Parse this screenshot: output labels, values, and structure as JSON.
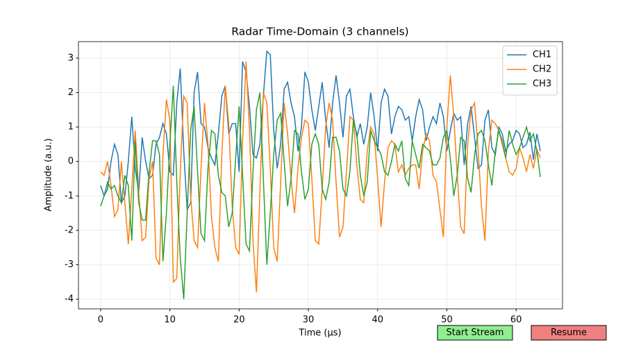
{
  "chart_data": {
    "type": "line",
    "title": "Radar Time-Domain (3 channels)",
    "xlabel": "Time (µs)",
    "ylabel": "Amplitude (a.u.)",
    "x": [
      0,
      0.5,
      1,
      1.5,
      2,
      2.5,
      3,
      3.5,
      4,
      4.5,
      5,
      5.5,
      6,
      6.5,
      7,
      7.5,
      8,
      8.5,
      9,
      9.5,
      10,
      10.5,
      11,
      11.5,
      12,
      12.5,
      13,
      13.5,
      14,
      14.5,
      15,
      15.5,
      16,
      16.5,
      17,
      17.5,
      18,
      18.5,
      19,
      19.5,
      20,
      20.5,
      21,
      21.5,
      22,
      22.5,
      23,
      23.5,
      24,
      24.5,
      25,
      25.5,
      26,
      26.5,
      27,
      27.5,
      28,
      28.5,
      29,
      29.5,
      30,
      30.5,
      31,
      31.5,
      32,
      32.5,
      33,
      33.5,
      34,
      34.5,
      35,
      35.5,
      36,
      36.5,
      37,
      37.5,
      38,
      38.5,
      39,
      39.5,
      40,
      40.5,
      41,
      41.5,
      42,
      42.5,
      43,
      43.5,
      44,
      44.5,
      45,
      45.5,
      46,
      46.5,
      47,
      47.5,
      48,
      48.5,
      49,
      49.5,
      50,
      50.5,
      51,
      51.5,
      52,
      52.5,
      53,
      53.5,
      54,
      54.5,
      55,
      55.5,
      56,
      56.5,
      57,
      57.5,
      58,
      58.5,
      59,
      59.5,
      60,
      60.5,
      61,
      61.5,
      62,
      62.5,
      63,
      63.5
    ],
    "series": [
      {
        "name": "CH1",
        "color": "#1f77b4",
        "values": [
          -0.7,
          -1.0,
          -0.8,
          0.0,
          0.5,
          0.2,
          -1.2,
          -1.0,
          0.0,
          1.3,
          -0.2,
          -0.9,
          0.7,
          0.0,
          -0.5,
          -0.4,
          0.5,
          0.7,
          1.1,
          0.8,
          -0.3,
          -0.4,
          1.7,
          2.7,
          0.3,
          -1.4,
          -1.2,
          2.0,
          2.6,
          1.1,
          1.0,
          0.4,
          0.1,
          -0.1,
          0.8,
          1.9,
          2.2,
          0.8,
          1.1,
          1.1,
          -0.3,
          2.9,
          2.6,
          1.6,
          0.2,
          0.1,
          0.5,
          1.9,
          3.2,
          3.1,
          0.9,
          -0.2,
          0.5,
          2.1,
          2.3,
          1.7,
          1.3,
          0.3,
          1.0,
          2.6,
          2.3,
          1.5,
          0.9,
          1.6,
          2.3,
          1.2,
          0.4,
          1.7,
          2.5,
          1.7,
          0.7,
          1.9,
          2.1,
          1.3,
          0.7,
          1.1,
          0.5,
          1.0,
          2.0,
          1.3,
          0.3,
          1.7,
          2.1,
          1.9,
          0.8,
          1.3,
          1.6,
          1.5,
          1.2,
          1.3,
          0.6,
          1.3,
          1.8,
          1.5,
          0.6,
          1.0,
          1.3,
          1.1,
          1.7,
          1.3,
          0.3,
          0.9,
          1.4,
          1.2,
          1.3,
          -0.1,
          1.1,
          1.6,
          0.7,
          -0.2,
          -0.1,
          1.2,
          1.5,
          0.4,
          0.2,
          1.0,
          0.8,
          0.3,
          0.5,
          0.6,
          0.9,
          0.8,
          0.4,
          0.5,
          0.85,
          0.05,
          0.8,
          0.3
        ]
      },
      {
        "name": "CH2",
        "color": "#ff7f0e",
        "values": [
          -0.3,
          -0.4,
          0.0,
          -0.7,
          -1.6,
          -1.4,
          0.0,
          -1.2,
          -2.4,
          -0.8,
          0.9,
          -0.9,
          -2.3,
          -2.2,
          -0.5,
          0.0,
          -2.8,
          -3.0,
          0.2,
          1.8,
          1.2,
          -3.5,
          -3.4,
          -0.3,
          1.9,
          1.7,
          -1.0,
          -2.3,
          -2.5,
          -0.2,
          1.7,
          0.5,
          -1.6,
          -2.5,
          -2.9,
          0.2,
          2.2,
          1.1,
          -1.3,
          -2.5,
          -2.7,
          0.6,
          2.9,
          0.9,
          -2.3,
          -3.8,
          -0.9,
          2.0,
          1.7,
          -0.2,
          -2.5,
          -2.9,
          -0.6,
          1.7,
          0.8,
          -0.5,
          -1.5,
          -0.2,
          0.7,
          1.2,
          1.1,
          -0.5,
          -2.3,
          -2.4,
          -0.8,
          1.0,
          1.7,
          1.2,
          -0.6,
          -2.2,
          -1.9,
          -0.3,
          1.3,
          1.2,
          -0.1,
          -1.1,
          -1.2,
          0.3,
          1.0,
          0.8,
          -0.5,
          -1.9,
          -0.6,
          0.4,
          0.6,
          0.5,
          -0.3,
          -0.1,
          -0.4,
          -0.2,
          -0.1,
          -0.1,
          -0.8,
          0.3,
          0.8,
          0.6,
          -0.4,
          -0.6,
          -1.4,
          -2.2,
          1.0,
          2.5,
          1.3,
          -0.4,
          -1.9,
          -2.1,
          0.5,
          1.5,
          1.7,
          0.4,
          -1.3,
          -2.3,
          0.3,
          1.2,
          1.1,
          0.9,
          0.5,
          0.1,
          -0.3,
          -0.4,
          -0.2,
          0.4,
          0.1,
          -0.3,
          0.2,
          -0.2,
          0.35,
          0.1
        ]
      },
      {
        "name": "CH3",
        "color": "#2ca02c",
        "values": [
          -1.3,
          -1.0,
          -0.6,
          -0.8,
          -0.7,
          -1.0,
          -1.2,
          -0.4,
          -0.7,
          -2.3,
          0.6,
          -1.2,
          -1.7,
          -1.7,
          -0.3,
          0.6,
          0.6,
          0.2,
          -2.9,
          -1.5,
          0.5,
          2.2,
          -0.6,
          -2.8,
          -4.0,
          -1.5,
          0.9,
          1.6,
          -0.3,
          -2.1,
          -2.3,
          -0.2,
          0.9,
          0.8,
          -0.4,
          -0.9,
          -1.0,
          -1.9,
          -1.5,
          0.1,
          1.6,
          -0.4,
          -2.4,
          -2.6,
          -0.3,
          1.5,
          2.0,
          -0.5,
          -3.0,
          -1.5,
          0.2,
          1.2,
          1.4,
          0.0,
          -1.3,
          -0.5,
          0.9,
          0.8,
          -0.3,
          -1.1,
          -0.8,
          0.5,
          0.8,
          0.5,
          -0.8,
          -1.1,
          -0.6,
          0.7,
          0.7,
          0.3,
          -0.8,
          -1.0,
          -0.3,
          1.2,
          0.8,
          -0.4,
          -1.0,
          -0.6,
          0.9,
          0.6,
          0.4,
          0.2,
          -0.3,
          -0.4,
          0.0,
          0.5,
          0.3,
          0.6,
          -0.5,
          -0.7,
          0.6,
          0.2,
          -0.2,
          0.5,
          0.4,
          0.3,
          -0.1,
          -0.1,
          0.1,
          0.7,
          0.9,
          0.1,
          -1.0,
          -0.4,
          0.7,
          0.6,
          -0.5,
          -0.9,
          0.2,
          0.8,
          0.9,
          0.6,
          -0.1,
          -0.7,
          0.3,
          0.9,
          0.6,
          0.1,
          0.9,
          0.5,
          0.2,
          0.4,
          0.7,
          1.0,
          0.6,
          0.8,
          0.3,
          -0.45
        ]
      }
    ],
    "xlim": [
      -3.2,
      66.7
    ],
    "ylim": [
      -4.28,
      3.48
    ],
    "xticks": [
      0,
      10,
      20,
      30,
      40,
      50,
      60
    ],
    "yticks": [
      -4,
      -3,
      -2,
      -1,
      0,
      1,
      2,
      3
    ],
    "grid": true,
    "legend": "upper right"
  },
  "buttons": [
    {
      "label": "Start Stream",
      "color": "#90ee90"
    },
    {
      "label": "Resume",
      "color": "#f08080"
    }
  ]
}
